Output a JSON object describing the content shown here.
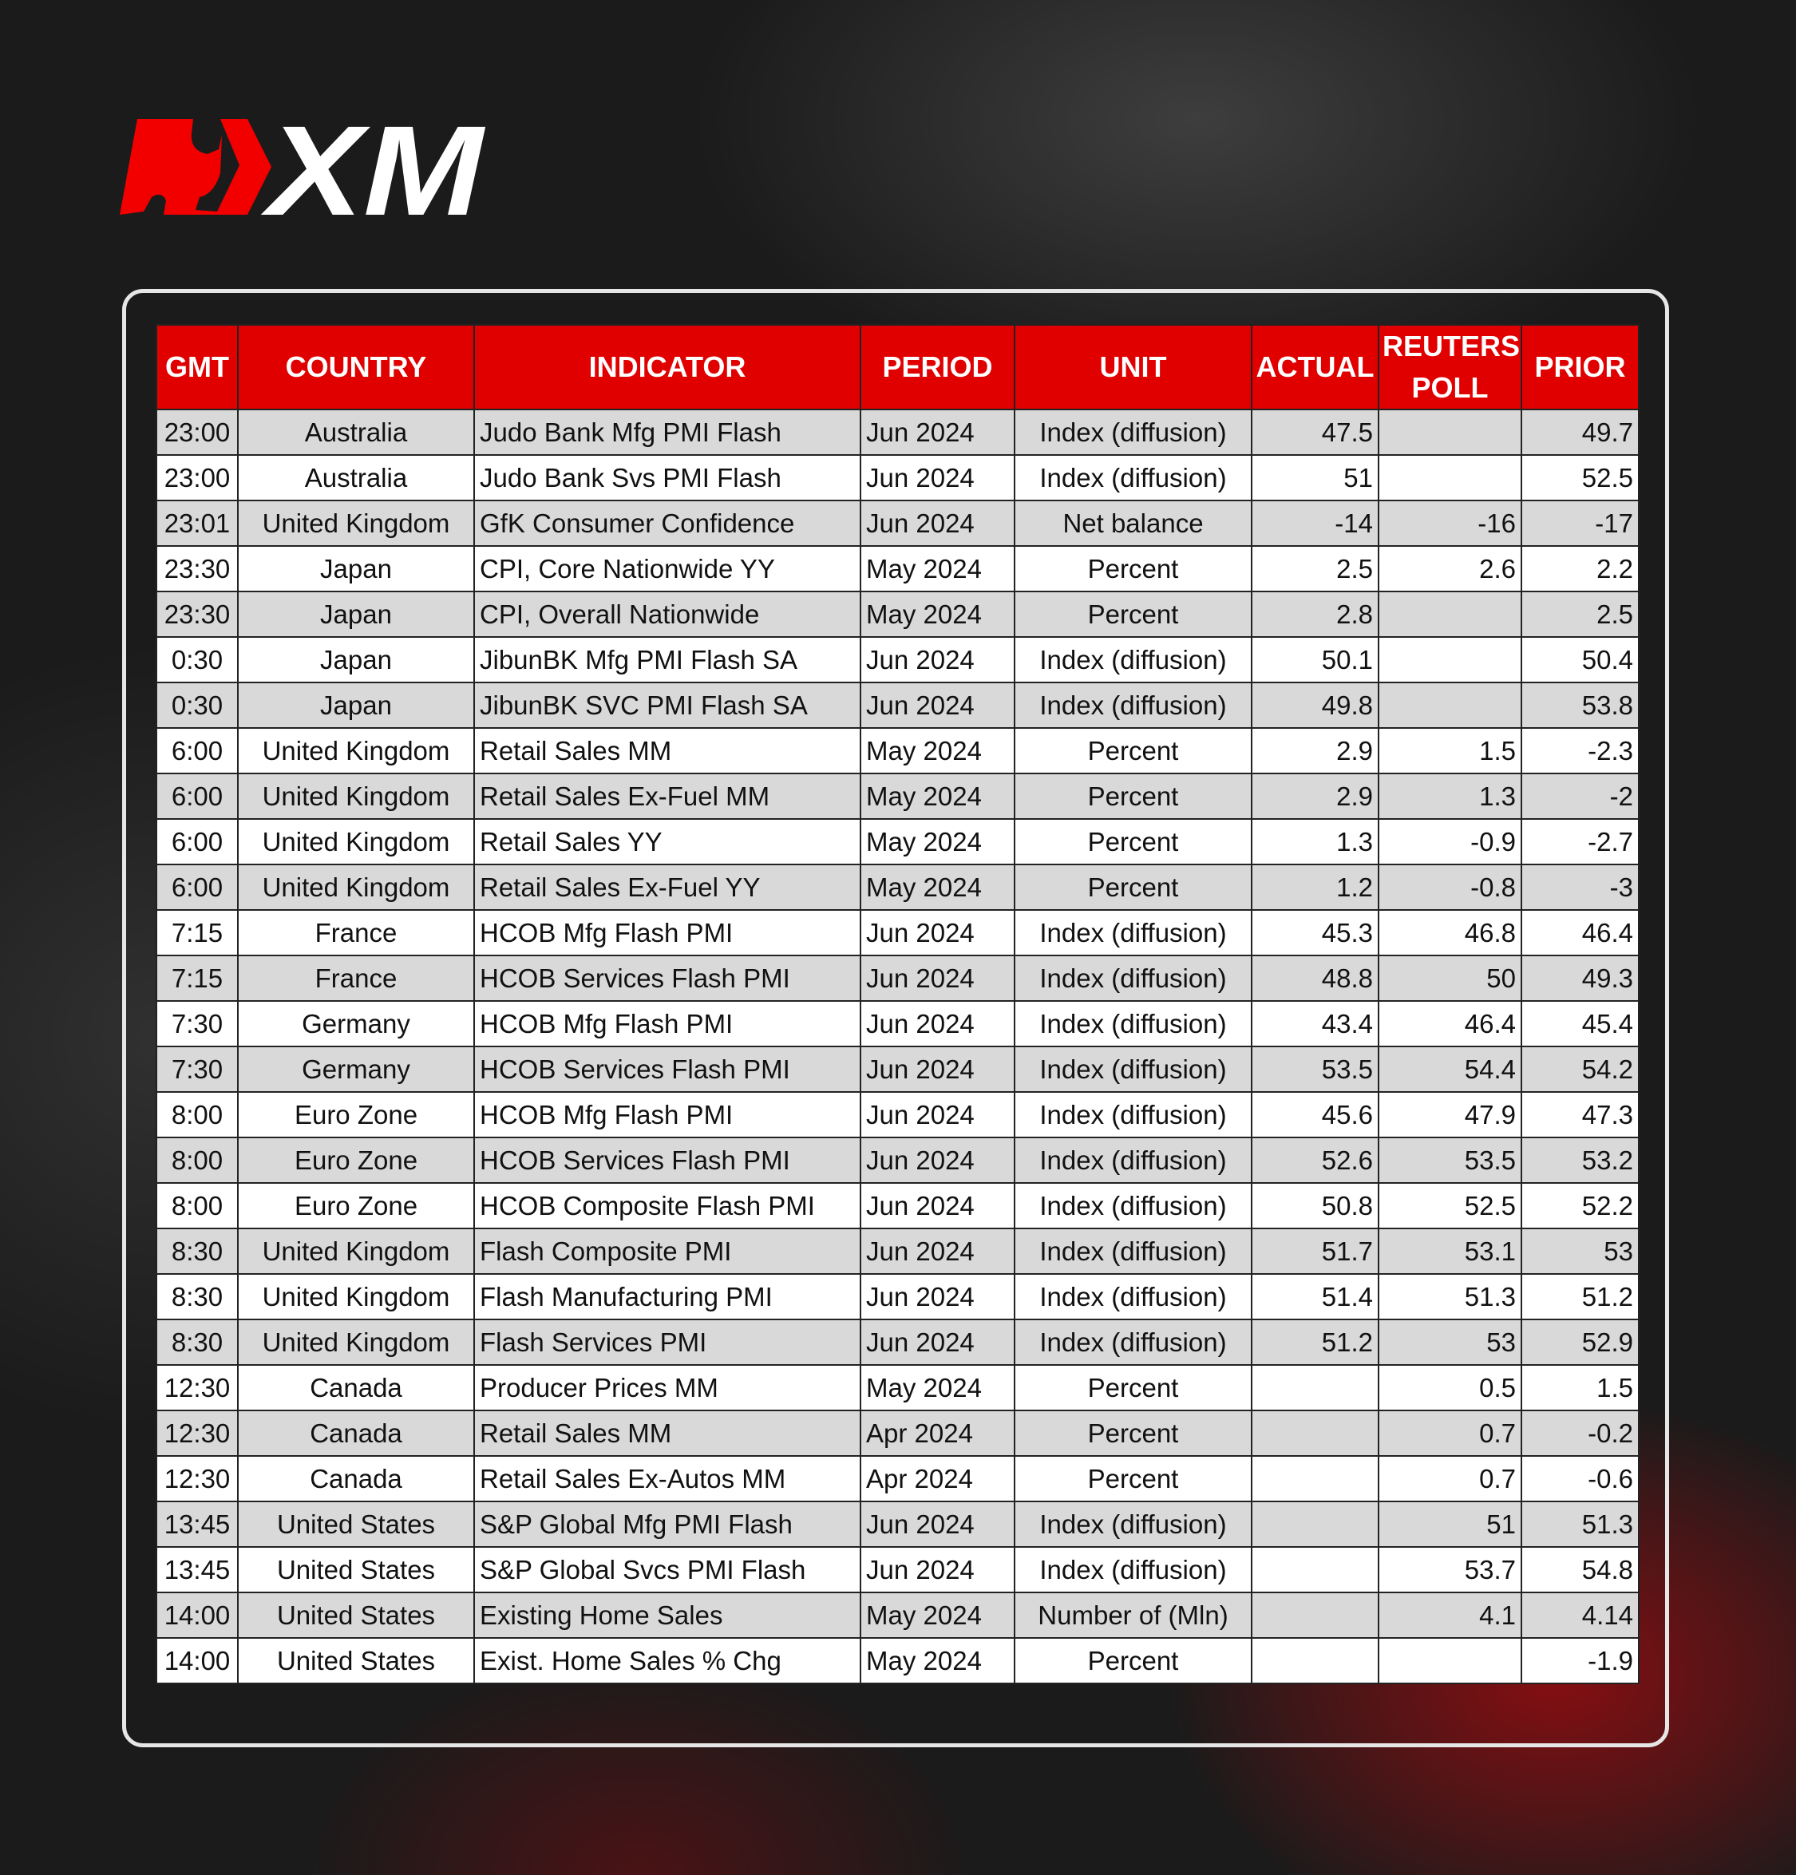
{
  "brand": {
    "logo_text": "XM",
    "accent": "#e00000"
  },
  "table": {
    "headers": [
      "GMT",
      "COUNTRY",
      "INDICATOR",
      "PERIOD",
      "UNIT",
      "ACTUAL",
      "REUTERS POLL",
      "PRIOR"
    ],
    "rows": [
      [
        "23:00",
        "Australia",
        "Judo Bank Mfg PMI Flash",
        "Jun 2024",
        "Index (diffusion)",
        "47.5",
        "",
        "49.7"
      ],
      [
        "23:00",
        "Australia",
        "Judo Bank Svs PMI Flash",
        "Jun 2024",
        "Index (diffusion)",
        "51",
        "",
        "52.5"
      ],
      [
        "23:01",
        "United Kingdom",
        "GfK Consumer Confidence",
        "Jun 2024",
        "Net balance",
        "-14",
        "-16",
        "-17"
      ],
      [
        "23:30",
        "Japan",
        "CPI, Core Nationwide YY",
        "May 2024",
        "Percent",
        "2.5",
        "2.6",
        "2.2"
      ],
      [
        "23:30",
        "Japan",
        "CPI, Overall Nationwide",
        "May 2024",
        "Percent",
        "2.8",
        "",
        "2.5"
      ],
      [
        "0:30",
        "Japan",
        "JibunBK Mfg PMI Flash SA",
        "Jun 2024",
        "Index (diffusion)",
        "50.1",
        "",
        "50.4"
      ],
      [
        "0:30",
        "Japan",
        "JibunBK SVC PMI Flash SA",
        "Jun 2024",
        "Index (diffusion)",
        "49.8",
        "",
        "53.8"
      ],
      [
        "6:00",
        "United Kingdom",
        "Retail Sales MM",
        "May 2024",
        "Percent",
        "2.9",
        "1.5",
        "-2.3"
      ],
      [
        "6:00",
        "United Kingdom",
        "Retail Sales Ex-Fuel MM",
        "May 2024",
        "Percent",
        "2.9",
        "1.3",
        "-2"
      ],
      [
        "6:00",
        "United Kingdom",
        "Retail Sales YY",
        "May 2024",
        "Percent",
        "1.3",
        "-0.9",
        "-2.7"
      ],
      [
        "6:00",
        "United Kingdom",
        "Retail Sales Ex-Fuel YY",
        "May 2024",
        "Percent",
        "1.2",
        "-0.8",
        "-3"
      ],
      [
        "7:15",
        "France",
        "HCOB Mfg Flash PMI",
        "Jun 2024",
        "Index (diffusion)",
        "45.3",
        "46.8",
        "46.4"
      ],
      [
        "7:15",
        "France",
        "HCOB Services Flash PMI",
        "Jun 2024",
        "Index (diffusion)",
        "48.8",
        "50",
        "49.3"
      ],
      [
        "7:30",
        "Germany",
        "HCOB Mfg Flash PMI",
        "Jun 2024",
        "Index (diffusion)",
        "43.4",
        "46.4",
        "45.4"
      ],
      [
        "7:30",
        "Germany",
        "HCOB Services Flash PMI",
        "Jun 2024",
        "Index (diffusion)",
        "53.5",
        "54.4",
        "54.2"
      ],
      [
        "8:00",
        "Euro Zone",
        "HCOB Mfg Flash PMI",
        "Jun 2024",
        "Index (diffusion)",
        "45.6",
        "47.9",
        "47.3"
      ],
      [
        "8:00",
        "Euro Zone",
        "HCOB Services Flash PMI",
        "Jun 2024",
        "Index (diffusion)",
        "52.6",
        "53.5",
        "53.2"
      ],
      [
        "8:00",
        "Euro Zone",
        "HCOB Composite Flash PMI",
        "Jun 2024",
        "Index (diffusion)",
        "50.8",
        "52.5",
        "52.2"
      ],
      [
        "8:30",
        "United Kingdom",
        "Flash Composite PMI",
        "Jun 2024",
        "Index (diffusion)",
        "51.7",
        "53.1",
        "53"
      ],
      [
        "8:30",
        "United Kingdom",
        "Flash Manufacturing PMI",
        "Jun 2024",
        "Index (diffusion)",
        "51.4",
        "51.3",
        "51.2"
      ],
      [
        "8:30",
        "United Kingdom",
        "Flash Services PMI",
        "Jun 2024",
        "Index (diffusion)",
        "51.2",
        "53",
        "52.9"
      ],
      [
        "12:30",
        "Canada",
        "Producer Prices MM",
        "May 2024",
        "Percent",
        "",
        "0.5",
        "1.5"
      ],
      [
        "12:30",
        "Canada",
        "Retail Sales MM",
        "Apr 2024",
        "Percent",
        "",
        "0.7",
        "-0.2"
      ],
      [
        "12:30",
        "Canada",
        "Retail Sales Ex-Autos MM",
        "Apr 2024",
        "Percent",
        "",
        "0.7",
        "-0.6"
      ],
      [
        "13:45",
        "United States",
        "S&P Global Mfg PMI Flash",
        "Jun 2024",
        "Index (diffusion)",
        "",
        "51",
        "51.3"
      ],
      [
        "13:45",
        "United States",
        "S&P Global Svcs PMI Flash",
        "Jun 2024",
        "Index (diffusion)",
        "",
        "53.7",
        "54.8"
      ],
      [
        "14:00",
        "United States",
        "Existing Home Sales",
        "May 2024",
        "Number of (Mln)",
        "",
        "4.1",
        "4.14"
      ],
      [
        "14:00",
        "United States",
        "Exist. Home Sales % Chg",
        "May 2024",
        "Percent",
        "",
        "",
        "-1.9"
      ]
    ]
  }
}
